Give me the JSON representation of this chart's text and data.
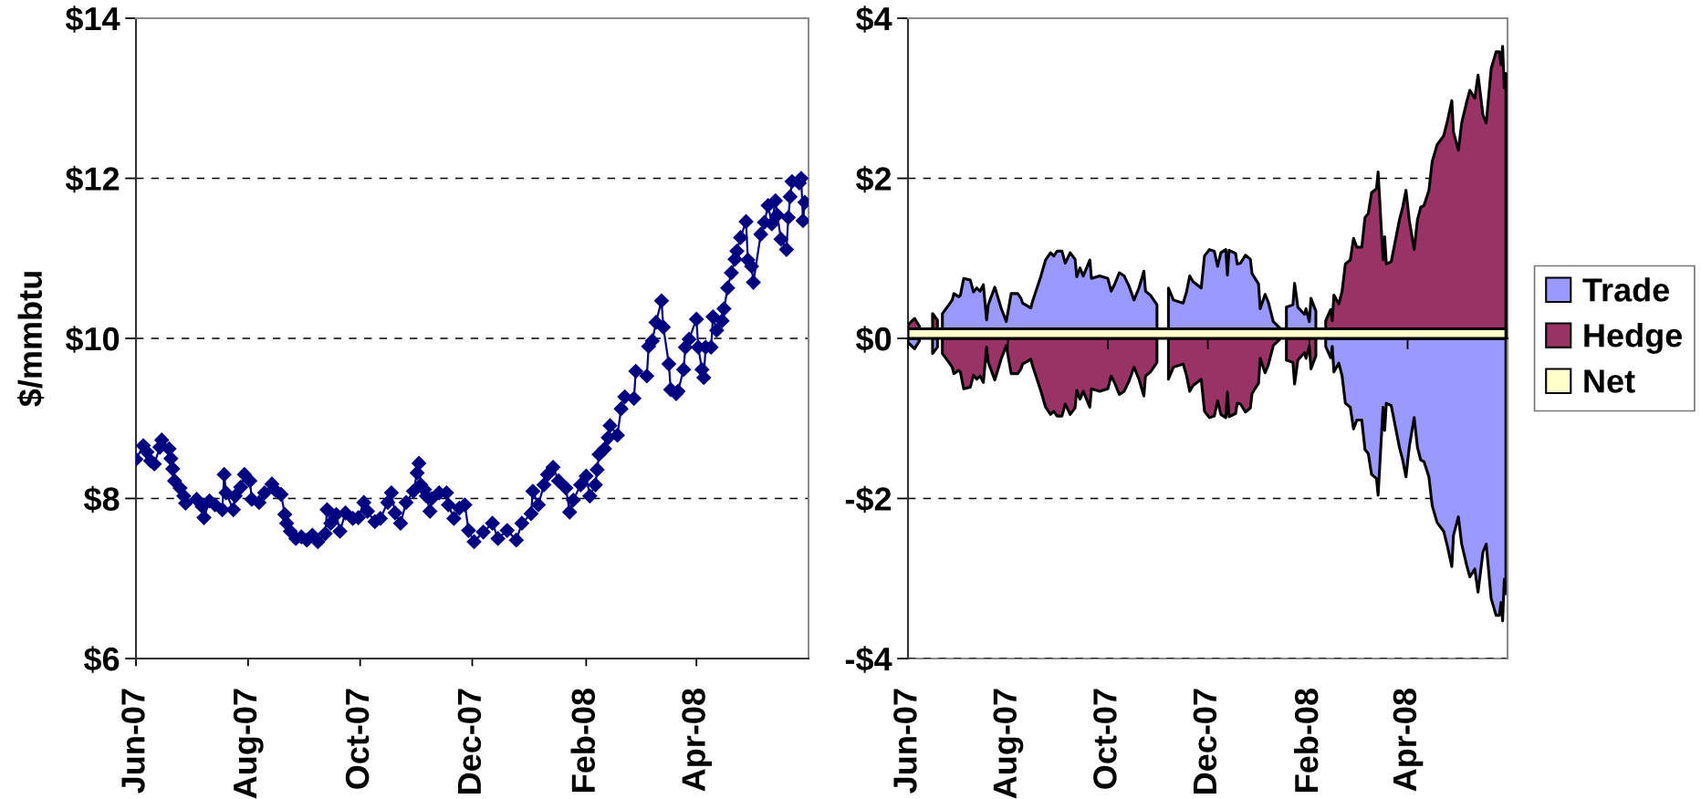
{
  "chart_data": [
    {
      "type": "line",
      "ylabel": "$/mmbtu",
      "marker": "diamond",
      "grid": "y",
      "legend": false,
      "x": [
        "2007-06-01",
        "2007-06-05",
        "2007-06-07",
        "2007-06-09",
        "2007-06-11",
        "2007-06-14",
        "2007-06-15",
        "2007-06-19",
        "2007-06-20",
        "2007-06-21",
        "2007-06-22",
        "2007-06-25",
        "2007-06-27",
        "2007-06-28",
        "2007-07-04",
        "2007-07-07",
        "2007-07-08",
        "2007-07-11",
        "2007-07-14",
        "2007-07-18",
        "2007-07-19",
        "2007-07-20",
        "2007-07-24",
        "2007-07-25",
        "2007-07-28",
        "2007-07-30",
        "2007-08-02",
        "2007-08-03",
        "2007-08-07",
        "2007-08-10",
        "2007-08-14",
        "2007-08-16",
        "2007-08-19",
        "2007-08-21",
        "2007-08-22",
        "2007-08-24",
        "2007-08-27",
        "2007-08-30",
        "2007-09-02",
        "2007-09-05",
        "2007-09-08",
        "2007-09-12",
        "2007-09-13",
        "2007-09-15",
        "2007-09-18",
        "2007-09-20",
        "2007-09-23",
        "2007-09-27",
        "2007-09-30",
        "2007-10-03",
        "2007-10-05",
        "2007-10-09",
        "2007-10-12",
        "2007-10-16",
        "2007-10-18",
        "2007-10-20",
        "2007-10-23",
        "2007-10-26",
        "2007-10-30",
        "2007-11-01",
        "2007-11-02",
        "2007-11-03",
        "2007-11-05",
        "2007-11-06",
        "2007-11-08",
        "2007-11-09",
        "2007-11-13",
        "2007-11-17",
        "2007-11-18",
        "2007-11-21",
        "2007-11-24",
        "2007-11-27",
        "2007-11-29",
        "2007-12-02",
        "2007-12-07",
        "2007-12-12",
        "2007-12-15",
        "2007-12-20",
        "2007-12-25",
        "2007-12-28",
        "2008-01-02",
        "2008-01-03",
        "2008-01-06",
        "2008-01-09",
        "2008-01-11",
        "2008-01-14",
        "2008-01-17",
        "2008-01-21",
        "2008-01-23",
        "2008-01-25",
        "2008-01-29",
        "2008-02-01",
        "2008-02-03",
        "2008-02-06",
        "2008-02-07",
        "2008-02-08",
        "2008-02-11",
        "2008-02-13",
        "2008-02-14",
        "2008-02-18",
        "2008-02-20",
        "2008-02-22",
        "2008-02-27",
        "2008-02-28",
        "2008-03-05",
        "2008-03-06",
        "2008-03-08",
        "2008-03-10",
        "2008-03-13",
        "2008-03-14",
        "2008-03-17",
        "2008-03-18",
        "2008-03-21",
        "2008-03-22",
        "2008-03-25",
        "2008-03-26",
        "2008-03-28",
        "2008-04-01",
        "2008-04-02",
        "2008-04-04",
        "2008-04-05",
        "2008-04-06",
        "2008-04-09",
        "2008-04-10",
        "2008-04-12",
        "2008-04-15",
        "2008-04-16",
        "2008-04-18",
        "2008-04-20",
        "2008-04-22",
        "2008-04-23",
        "2008-04-25",
        "2008-04-28",
        "2008-04-29",
        "2008-05-01",
        "2008-05-02",
        "2008-05-06",
        "2008-05-08",
        "2008-05-10",
        "2008-05-12",
        "2008-05-14",
        "2008-05-15",
        "2008-05-17",
        "2008-05-20",
        "2008-05-21",
        "2008-05-22",
        "2008-05-23",
        "2008-05-27",
        "2008-05-28",
        "2008-05-29",
        "2008-05-30"
      ],
      "series": [
        {
          "color": "#000080",
          "values": [
            8.49,
            8.66,
            8.58,
            8.47,
            8.43,
            8.64,
            8.73,
            8.62,
            8.5,
            8.37,
            8.22,
            8.13,
            8.03,
            7.94,
            7.99,
            7.9,
            7.76,
            7.97,
            7.92,
            7.86,
            8.3,
            8.07,
            7.86,
            8.03,
            8.14,
            8.3,
            8.22,
            7.99,
            7.95,
            8.07,
            8.18,
            8.1,
            8.05,
            7.8,
            7.69,
            7.59,
            7.5,
            7.52,
            7.48,
            7.54,
            7.46,
            7.56,
            7.86,
            7.69,
            7.8,
            7.59,
            7.82,
            7.75,
            7.76,
            7.95,
            7.84,
            7.71,
            7.75,
            7.95,
            8.07,
            7.82,
            7.69,
            7.95,
            8.09,
            8.32,
            8.44,
            8.17,
            8.11,
            8.03,
            7.84,
            8.0,
            8.07,
            8.07,
            7.92,
            7.75,
            7.88,
            7.92,
            7.6,
            7.46,
            7.58,
            7.69,
            7.5,
            7.6,
            7.48,
            7.69,
            7.81,
            8.09,
            7.92,
            8.17,
            8.3,
            8.39,
            8.22,
            8.13,
            7.83,
            7.98,
            8.17,
            8.28,
            8.03,
            8.17,
            8.36,
            8.55,
            8.62,
            8.76,
            8.91,
            8.79,
            9.12,
            9.27,
            9.25,
            9.59,
            9.53,
            9.9,
            9.97,
            10.2,
            10.47,
            10.14,
            9.68,
            9.36,
            9.31,
            9.34,
            9.61,
            9.89,
            9.99,
            10.24,
            9.89,
            9.61,
            9.51,
            9.89,
            9.89,
            10.27,
            10.1,
            10.22,
            10.37,
            10.63,
            10.82,
            10.99,
            11.09,
            11.26,
            11.46,
            10.98,
            10.9,
            10.7,
            11.3,
            11.45,
            11.66,
            11.43,
            11.72,
            11.54,
            11.24,
            11.11,
            11.51,
            11.77,
            11.96,
            11.94,
            12.0,
            11.47,
            11.7
          ]
        }
      ],
      "xlim": [
        "2007-06-01",
        "2008-06-01"
      ],
      "xticks": [
        {
          "value": "2007-06-01",
          "label": "Jun-07"
        },
        {
          "value": "2007-08-01",
          "label": "Aug-07"
        },
        {
          "value": "2007-10-01",
          "label": "Oct-07"
        },
        {
          "value": "2007-12-01",
          "label": "Dec-07"
        },
        {
          "value": "2008-02-01",
          "label": "Feb-08"
        },
        {
          "value": "2008-04-01",
          "label": "Apr-08"
        }
      ],
      "ylim": [
        6,
        14
      ],
      "yticks": [
        {
          "value": 6,
          "label": "$6"
        },
        {
          "value": 8,
          "label": "$8"
        },
        {
          "value": 10,
          "label": "$10"
        },
        {
          "value": 12,
          "label": "$12"
        },
        {
          "value": 14,
          "label": "$14"
        }
      ]
    },
    {
      "type": "area",
      "grid": "y",
      "legend": "right",
      "x": [
        "2007-06-01",
        "2007-06-05",
        "2007-06-08",
        "2007-06-11",
        "2007-06-16",
        "2007-06-19",
        "2007-06-21",
        "2007-06-22",
        "2007-06-26",
        "2007-06-28",
        "2007-06-29",
        "2007-07-02",
        "2007-07-03",
        "2007-07-05",
        "2007-07-09",
        "2007-07-11",
        "2007-07-13",
        "2007-07-15",
        "2007-07-17",
        "2007-07-19",
        "2007-07-20",
        "2007-07-24",
        "2007-07-28",
        "2007-07-31",
        "2007-08-03",
        "2007-08-07",
        "2007-08-09",
        "2007-08-10",
        "2007-08-15",
        "2007-08-16",
        "2007-08-21",
        "2007-08-24",
        "2007-08-27",
        "2007-08-29",
        "2007-08-31",
        "2007-09-03",
        "2007-09-05",
        "2007-09-08",
        "2007-09-11",
        "2007-09-12",
        "2007-09-14",
        "2007-09-16",
        "2007-09-20",
        "2007-09-21",
        "2007-09-26",
        "2007-10-01",
        "2007-10-03",
        "2007-10-05",
        "2007-10-08",
        "2007-10-11",
        "2007-10-14",
        "2007-10-17",
        "2007-10-20",
        "2007-10-23",
        "2007-10-24",
        "2007-10-27",
        "2007-10-31",
        "2007-11-02",
        "2007-11-07",
        "2007-11-10",
        "2007-11-16",
        "2007-11-18",
        "2007-11-20",
        "2007-11-22",
        "2007-11-27",
        "2007-11-29",
        "2007-12-02",
        "2007-12-05",
        "2007-12-07",
        "2007-12-09",
        "2007-12-12",
        "2007-12-13",
        "2007-12-14",
        "2007-12-18",
        "2007-12-19",
        "2007-12-21",
        "2007-12-24",
        "2007-12-27",
        "2007-12-28",
        "2008-01-01",
        "2008-01-02",
        "2008-01-05",
        "2008-01-07",
        "2008-01-10",
        "2008-01-14",
        "2008-01-15",
        "2008-01-18",
        "2008-01-22",
        "2008-01-23",
        "2008-01-25",
        "2008-01-29",
        "2008-01-30",
        "2008-02-01",
        "2008-02-02",
        "2008-02-05",
        "2008-02-08",
        "2008-02-11",
        "2008-02-14",
        "2008-02-15",
        "2008-02-16",
        "2008-02-19",
        "2008-02-21",
        "2008-02-23",
        "2008-02-26",
        "2008-02-28",
        "2008-03-01",
        "2008-03-04",
        "2008-03-06",
        "2008-03-08",
        "2008-03-10",
        "2008-03-13",
        "2008-03-14",
        "2008-03-17",
        "2008-03-18",
        "2008-03-19",
        "2008-03-22",
        "2008-03-27",
        "2008-03-29",
        "2008-03-31",
        "2008-04-02",
        "2008-04-05",
        "2008-04-07",
        "2008-04-09",
        "2008-04-11",
        "2008-04-14",
        "2008-04-16",
        "2008-04-19",
        "2008-04-23",
        "2008-04-25",
        "2008-04-28",
        "2008-04-29",
        "2008-05-02",
        "2008-05-04",
        "2008-05-07",
        "2008-05-09",
        "2008-05-12",
        "2008-05-14",
        "2008-05-17",
        "2008-05-19",
        "2008-05-22",
        "2008-05-25",
        "2008-05-27",
        "2008-05-28",
        "2008-05-29",
        "2008-05-30",
        "2008-05-31"
      ],
      "series": [
        {
          "name": "Trade",
          "color": "#9999ff",
          "values": [
            -0.05,
            -0.13,
            -0.03,
            null,
            -0.19,
            -0.11,
            null,
            0.31,
            0.42,
            0.48,
            0.56,
            0.52,
            0.54,
            0.75,
            0.73,
            0.58,
            0.63,
            0.59,
            0.67,
            0.23,
            0.42,
            0.64,
            0.37,
            0.21,
            0.56,
            0.56,
            0.5,
            0.44,
            0.38,
            0.46,
            0.77,
            0.98,
            1.07,
            1.03,
            1.09,
            1.09,
            0.94,
            1.07,
            0.99,
            0.77,
            0.88,
            0.78,
            0.98,
            0.75,
            0.78,
            0.75,
            0.59,
            0.67,
            0.82,
            0.78,
            0.65,
            0.48,
            0.63,
            0.84,
            0.59,
            0.54,
            0.42,
            null,
            0.63,
            0.48,
            0.44,
            0.58,
            0.78,
            0.71,
            0.63,
            1.03,
            1.11,
            1.09,
            0.9,
            1.07,
            1.11,
            0.79,
            1.1,
            1.06,
            0.93,
            0.94,
            1.04,
            0.99,
            0.81,
            0.68,
            0.37,
            0.55,
            0.45,
            0.21,
            0.13,
            null,
            0.39,
            0.42,
            0.69,
            0.39,
            0.3,
            0.37,
            0.21,
            0.5,
            0.34,
            null,
            -0.1,
            -0.24,
            -0.1,
            -0.42,
            -0.31,
            -0.47,
            -0.81,
            -0.86,
            -1.13,
            -1.02,
            -1.02,
            -1.39,
            -1.44,
            -1.7,
            -1.75,
            -1.96,
            -0.86,
            -1.15,
            -0.81,
            -0.84,
            -1.36,
            -1.52,
            -1.73,
            -1.36,
            -0.99,
            -1.36,
            -1.52,
            -1.54,
            -1.73,
            -2.09,
            -2.3,
            -2.41,
            -2.57,
            -2.85,
            -2.46,
            -2.23,
            -2.57,
            -2.83,
            -2.98,
            -2.88,
            -3.17,
            -2.67,
            -2.57,
            -3.25,
            -3.46,
            -3.46,
            -3.3,
            -3.53,
            -3.01,
            -3.19
          ]
        },
        {
          "name": "Hedge",
          "color": "#993366",
          "values": [
            0.17,
            0.25,
            0.15,
            null,
            0.31,
            0.23,
            null,
            -0.19,
            -0.3,
            -0.36,
            -0.44,
            -0.4,
            -0.42,
            -0.63,
            -0.61,
            -0.46,
            -0.51,
            -0.47,
            -0.55,
            -0.11,
            -0.3,
            -0.52,
            -0.25,
            -0.09,
            -0.44,
            -0.44,
            -0.38,
            -0.32,
            -0.26,
            -0.34,
            -0.65,
            -0.86,
            -0.95,
            -0.91,
            -0.97,
            -0.97,
            -0.82,
            -0.95,
            -0.87,
            -0.65,
            -0.76,
            -0.66,
            -0.86,
            -0.63,
            -0.66,
            -0.63,
            -0.47,
            -0.55,
            -0.7,
            -0.66,
            -0.53,
            -0.36,
            -0.51,
            -0.72,
            -0.47,
            -0.42,
            -0.3,
            null,
            -0.51,
            -0.36,
            -0.32,
            -0.46,
            -0.66,
            -0.59,
            -0.51,
            -0.91,
            -0.99,
            -0.97,
            -0.78,
            -0.95,
            -0.99,
            -0.67,
            -0.98,
            -0.94,
            -0.81,
            -0.82,
            -0.92,
            -0.87,
            -0.69,
            -0.56,
            -0.25,
            -0.43,
            -0.33,
            -0.09,
            -0.01,
            null,
            -0.27,
            -0.3,
            -0.57,
            -0.27,
            -0.18,
            -0.25,
            -0.09,
            -0.38,
            -0.22,
            null,
            0.22,
            0.36,
            0.22,
            0.54,
            0.43,
            0.59,
            0.93,
            0.98,
            1.25,
            1.14,
            1.14,
            1.51,
            1.56,
            1.82,
            1.87,
            2.08,
            0.98,
            1.27,
            0.93,
            0.96,
            1.48,
            1.64,
            1.85,
            1.48,
            1.11,
            1.48,
            1.64,
            1.66,
            1.85,
            2.21,
            2.42,
            2.53,
            2.69,
            2.97,
            2.58,
            2.35,
            2.69,
            2.95,
            3.1,
            3.0,
            3.29,
            2.79,
            2.69,
            3.37,
            3.58,
            3.58,
            3.42,
            3.65,
            3.13,
            3.31
          ]
        },
        {
          "name": "Net",
          "color": "#ffffcc",
          "values": [
            0.12,
            0.12,
            0.12,
            0.12,
            0.12,
            0.12,
            0.12,
            0.12,
            0.12,
            0.12,
            0.12,
            0.12,
            0.12,
            0.12,
            0.12,
            0.12,
            0.12,
            0.12,
            0.12,
            0.12,
            0.12,
            0.12,
            0.12,
            0.12,
            0.12,
            0.12,
            0.12,
            0.12,
            0.12,
            0.12,
            0.12,
            0.12,
            0.12,
            0.12,
            0.12,
            0.12,
            0.12,
            0.12,
            0.12,
            0.12,
            0.12,
            0.12,
            0.12,
            0.12,
            0.12,
            0.12,
            0.12,
            0.12,
            0.12,
            0.12,
            0.12,
            0.12,
            0.12,
            0.12,
            0.12,
            0.12,
            0.12,
            0.12,
            0.12,
            0.12,
            0.12,
            0.12,
            0.12,
            0.12,
            0.12,
            0.12,
            0.12,
            0.12,
            0.12,
            0.12,
            0.12,
            0.12,
            0.12,
            0.12,
            0.12,
            0.12,
            0.12,
            0.12,
            0.12,
            0.12,
            0.12,
            0.12,
            0.12,
            0.12,
            0.12,
            0.12,
            0.12,
            0.12,
            0.12,
            0.12,
            0.12,
            0.12,
            0.12,
            0.12,
            0.12,
            0.12,
            0.12,
            0.12,
            0.12,
            0.12,
            0.12,
            0.12,
            0.12,
            0.12,
            0.12,
            0.12,
            0.12,
            0.12,
            0.12,
            0.12,
            0.12,
            0.12,
            0.12,
            0.12,
            0.12,
            0.12,
            0.12,
            0.12,
            0.12,
            0.12,
            0.12,
            0.12,
            0.12,
            0.12,
            0.12,
            0.12,
            0.12,
            0.12,
            0.12,
            0.12,
            0.12,
            0.12,
            0.12,
            0.12,
            0.12,
            0.12,
            0.12,
            0.12,
            0.12,
            0.12,
            0.12,
            0.12,
            0.12,
            0.12,
            0.12,
            0.12
          ]
        }
      ],
      "xlim": [
        "2007-06-01",
        "2008-06-01"
      ],
      "xticks": [
        {
          "value": "2007-06-01",
          "label": "Jun-07"
        },
        {
          "value": "2007-08-01",
          "label": "Aug-07"
        },
        {
          "value": "2007-10-01",
          "label": "Oct-07"
        },
        {
          "value": "2007-12-01",
          "label": "Dec-07"
        },
        {
          "value": "2008-02-01",
          "label": "Feb-08"
        },
        {
          "value": "2008-04-01",
          "label": "Apr-08"
        }
      ],
      "ylim": [
        -4,
        4
      ],
      "yticks": [
        {
          "value": -4,
          "label": "-$4"
        },
        {
          "value": -2,
          "label": "-$2"
        },
        {
          "value": 0,
          "label": "$0"
        },
        {
          "value": 2,
          "label": "$2"
        },
        {
          "value": 4,
          "label": "$4"
        }
      ]
    }
  ]
}
